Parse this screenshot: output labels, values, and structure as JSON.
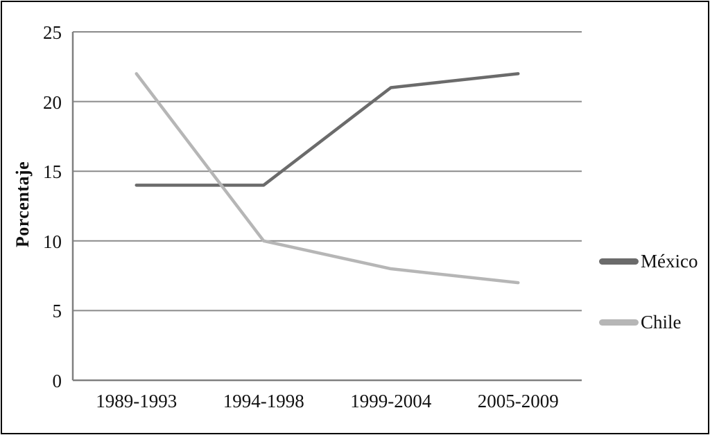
{
  "chart_data": {
    "type": "line",
    "categories": [
      "1989-1993",
      "1994-1998",
      "1999-2004",
      "2005-2009"
    ],
    "series": [
      {
        "name": "México",
        "values": [
          14,
          14,
          21,
          22
        ],
        "color": "#6b6b6b"
      },
      {
        "name": "Chile",
        "values": [
          22,
          10,
          8,
          7
        ],
        "color": "#b6b6b6"
      }
    ],
    "title": "",
    "xlabel": "",
    "ylabel": "Porcentaje",
    "yticks": [
      0,
      5,
      10,
      15,
      20,
      25
    ],
    "ylim": [
      0,
      25
    ],
    "grid": true,
    "legend_position": "right"
  },
  "colors": {
    "grid": "#8a8a8a",
    "axis": "#7f7f7f",
    "text": "#111111",
    "background": "#ffffff",
    "border": "#000000"
  }
}
